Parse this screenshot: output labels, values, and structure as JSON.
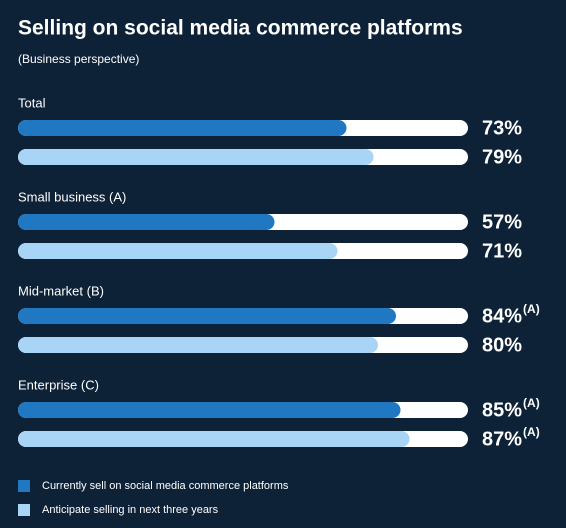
{
  "chart_data": {
    "type": "grouped-bar-horizontal",
    "title": "Selling on social media commerce platforms",
    "subtitle": "(Business perspective)",
    "categories": [
      "Total",
      "Small business (A)",
      "Mid-market (B)",
      "Enterprise (C)"
    ],
    "xlim": [
      0,
      100
    ],
    "series": [
      {
        "name": "Currently sell on social media commerce platforms",
        "color": "#1f78c1",
        "values": [
          73,
          57,
          84,
          85
        ],
        "value_labels": [
          "73%",
          "57%",
          "84%",
          "85%"
        ],
        "notes": [
          null,
          null,
          "(A)",
          "(A)"
        ]
      },
      {
        "name": "Anticipate selling in next three years",
        "color": "#a8d4f5",
        "values": [
          79,
          71,
          80,
          87
        ],
        "value_labels": [
          "79%",
          "71%",
          "80%",
          "87%"
        ],
        "notes": [
          null,
          null,
          null,
          "(A)"
        ]
      }
    ]
  }
}
